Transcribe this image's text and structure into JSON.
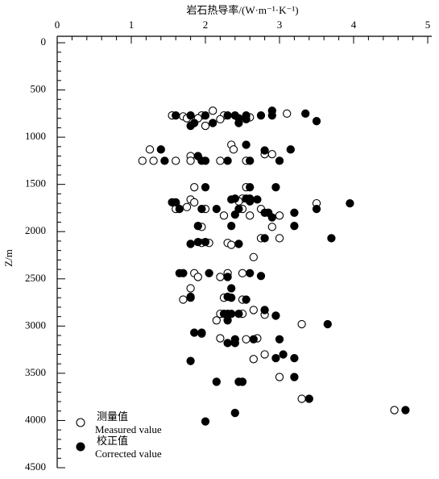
{
  "chart_data": {
    "type": "scatter",
    "x_label": "岩石热导率/(W·m⁻¹·K⁻¹)",
    "y_label": "Z/m",
    "xlim": [
      0,
      5
    ],
    "xticks": [
      0,
      1,
      2,
      3,
      4,
      5
    ],
    "ylim": [
      0,
      4500
    ],
    "yticks": [
      0,
      500,
      1000,
      1500,
      2000,
      2500,
      3000,
      3500,
      4000,
      4500
    ],
    "y_inverted": true,
    "series": [
      {
        "name": "测量值",
        "name_en": "Measured value",
        "marker": "open",
        "color": "#000000",
        "x": [
          2.1,
          3.1,
          1.55,
          1.7,
          1.95,
          2.25,
          2.6,
          1.9,
          1.75,
          2.2,
          2.0,
          2.35,
          1.25,
          2.38,
          2.8,
          2.9,
          1.8,
          1.15,
          1.3,
          1.6,
          1.8,
          2.2,
          2.55,
          1.85,
          2.55,
          2.5,
          1.8,
          1.85,
          2.45,
          1.6,
          3.5,
          1.6,
          1.75,
          2.0,
          2.5,
          2.75,
          2.25,
          2.6,
          3.0,
          1.95,
          2.9,
          2.75,
          3.0,
          1.95,
          2.05,
          2.3,
          2.35,
          2.65,
          1.85,
          2.3,
          2.5,
          1.9,
          2.2,
          1.8,
          2.25,
          1.8,
          1.7,
          2.5,
          2.65,
          2.2,
          2.5,
          2.8,
          2.15,
          3.3,
          1.95,
          2.2,
          2.7,
          2.55,
          2.8,
          2.65,
          3.0,
          3.3,
          4.55
        ],
        "y": [
          720,
          750,
          770,
          780,
          770,
          770,
          790,
          800,
          800,
          810,
          880,
          1080,
          1130,
          1130,
          1180,
          1180,
          1200,
          1250,
          1250,
          1250,
          1250,
          1250,
          1250,
          1530,
          1530,
          1650,
          1660,
          1690,
          1680,
          1700,
          1700,
          1760,
          1740,
          1760,
          1760,
          1760,
          1830,
          1830,
          1830,
          1950,
          1950,
          2070,
          2070,
          2120,
          2120,
          2120,
          2140,
          2270,
          2440,
          2440,
          2440,
          2480,
          2480,
          2600,
          2700,
          2700,
          2720,
          2720,
          2830,
          2870,
          2870,
          2880,
          2940,
          2980,
          3080,
          3130,
          3130,
          3140,
          3300,
          3350,
          3540,
          3770,
          3890
        ]
      },
      {
        "name": "校正值",
        "name_en": "Corrected value",
        "marker": "filled",
        "color": "#000000",
        "x": [
          2.9,
          1.6,
          1.8,
          2.0,
          2.3,
          2.4,
          2.55,
          2.75,
          2.9,
          3.35,
          2.45,
          2.55,
          3.5,
          1.85,
          2.1,
          2.45,
          1.8,
          2.55,
          1.4,
          3.15,
          2.8,
          1.9,
          1.45,
          1.95,
          2.0,
          2.3,
          2.6,
          3.0,
          2.0,
          2.6,
          2.95,
          2.35,
          2.4,
          2.55,
          2.6,
          2.7,
          1.55,
          1.6,
          2.6,
          3.95,
          1.65,
          1.95,
          2.15,
          2.45,
          3.5,
          2.8,
          2.85,
          3.2,
          2.4,
          2.9,
          1.9,
          2.35,
          3.2,
          3.7,
          2.8,
          1.9,
          2.0,
          1.8,
          2.45,
          1.65,
          1.7,
          2.05,
          2.6,
          2.75,
          2.3,
          2.35,
          1.8,
          2.3,
          2.35,
          2.55,
          2.8,
          2.25,
          2.3,
          2.35,
          2.45,
          2.95,
          2.3,
          3.65,
          1.85,
          1.95,
          2.4,
          2.65,
          3.0,
          2.3,
          2.4,
          3.05,
          2.95,
          3.2,
          1.8,
          3.2,
          2.15,
          2.45,
          2.5,
          3.4,
          4.7,
          2.4,
          2.0
        ],
        "y": [
          720,
          770,
          770,
          770,
          770,
          770,
          770,
          770,
          770,
          750,
          800,
          810,
          830,
          850,
          850,
          850,
          880,
          1080,
          1130,
          1130,
          1140,
          1200,
          1250,
          1250,
          1250,
          1250,
          1250,
          1250,
          1530,
          1530,
          1530,
          1660,
          1650,
          1650,
          1680,
          1660,
          1690,
          1690,
          1650,
          1700,
          1760,
          1760,
          1760,
          1760,
          1760,
          1800,
          1800,
          1800,
          1820,
          1850,
          1940,
          1940,
          1940,
          2070,
          2070,
          2110,
          2110,
          2130,
          2130,
          2440,
          2440,
          2440,
          2440,
          2470,
          2480,
          2600,
          2690,
          2690,
          2700,
          2720,
          2830,
          2870,
          2870,
          2870,
          2870,
          2890,
          2940,
          2980,
          3070,
          3070,
          3140,
          3140,
          3140,
          3180,
          3180,
          3300,
          3340,
          3340,
          3370,
          3540,
          3590,
          3590,
          3590,
          3770,
          3890,
          3920,
          4010
        ]
      }
    ]
  }
}
